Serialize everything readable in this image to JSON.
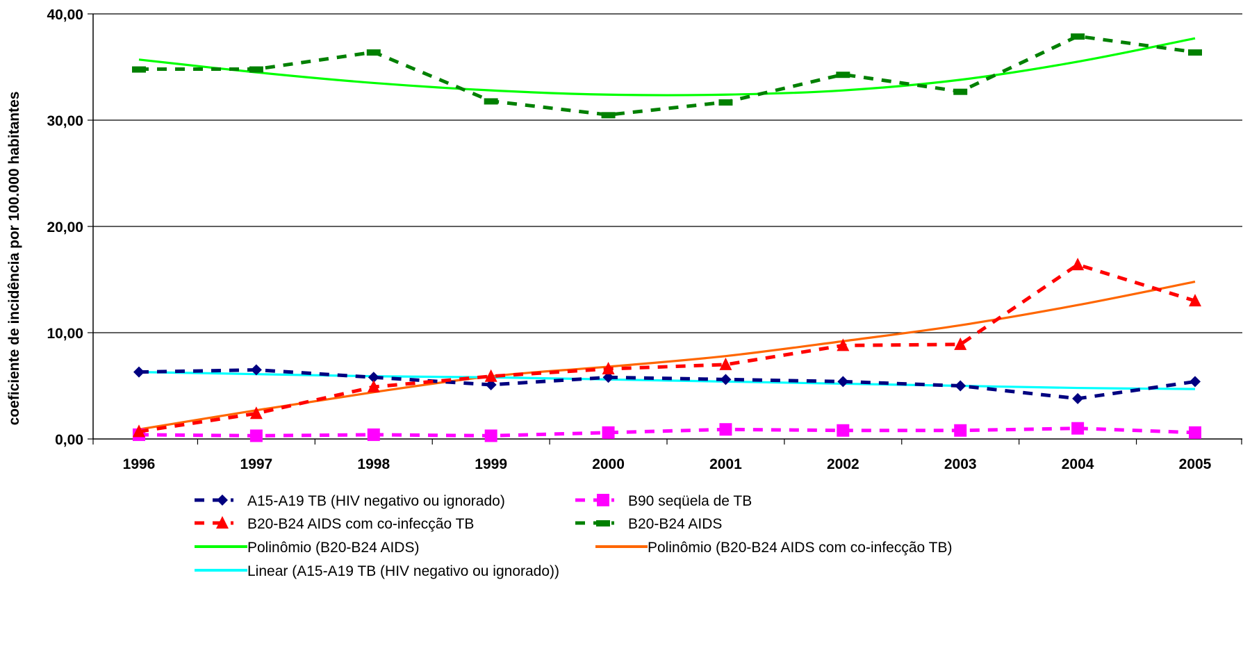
{
  "chart_data": {
    "type": "line",
    "title": "",
    "xlabel": "",
    "ylabel": "coeficiente de incidência por 100.000 habitantes",
    "categories": [
      "1996",
      "1997",
      "1998",
      "1999",
      "2000",
      "2001",
      "2002",
      "2003",
      "2004",
      "2005"
    ],
    "ylim": [
      0,
      40
    ],
    "yticks": [
      "0,00",
      "10,00",
      "20,00",
      "30,00",
      "40,00"
    ],
    "ytick_values": [
      0,
      10,
      20,
      30,
      40
    ],
    "grid": "horizontal",
    "legend_position": "bottom",
    "series": [
      {
        "name": "A15-A19 TB (HIV negativo ou ignorado)",
        "marker": "diamond",
        "style": "dashed",
        "color": "#000080",
        "values": [
          6.3,
          6.5,
          5.8,
          5.1,
          5.8,
          5.6,
          5.4,
          5.0,
          3.8,
          5.4
        ]
      },
      {
        "name": "B90 seqüela de TB",
        "marker": "square",
        "style": "dashed",
        "color": "#ff00ff",
        "values": [
          0.4,
          0.3,
          0.4,
          0.3,
          0.6,
          0.9,
          0.8,
          0.8,
          1.0,
          0.6
        ]
      },
      {
        "name": "B20-B24 AIDS com co-infecção TB",
        "marker": "triangle",
        "style": "dashed",
        "color": "#ff0000",
        "values": [
          0.7,
          2.4,
          4.9,
          5.9,
          6.6,
          7.0,
          8.8,
          8.9,
          16.4,
          13.0
        ]
      },
      {
        "name": "B20-B24 AIDS",
        "marker": "dash",
        "style": "dashed",
        "color": "#008000",
        "values": [
          34.8,
          34.8,
          36.4,
          31.8,
          30.5,
          31.7,
          34.3,
          32.7,
          37.9,
          36.4
        ]
      },
      {
        "name": "Polinômio (B20-B24 AIDS)",
        "marker": "none",
        "style": "solid",
        "color": "#00ff00",
        "values": [
          35.7,
          34.5,
          33.5,
          32.8,
          32.4,
          32.4,
          32.8,
          33.8,
          35.5,
          37.7
        ]
      },
      {
        "name": "Polinômio (B20-B24 AIDS com co-infecção TB)",
        "marker": "none",
        "style": "solid",
        "color": "#ff6600",
        "values": [
          0.9,
          2.7,
          4.4,
          5.9,
          6.8,
          7.8,
          9.2,
          10.7,
          12.6,
          14.8
        ]
      },
      {
        "name": "Linear (A15-A19 TB (HIV negativo ou ignorado))",
        "marker": "none",
        "style": "solid",
        "color": "#00ffff",
        "values": [
          6.3,
          6.1,
          5.9,
          5.8,
          5.6,
          5.4,
          5.2,
          5.0,
          4.8,
          4.7
        ]
      }
    ]
  }
}
